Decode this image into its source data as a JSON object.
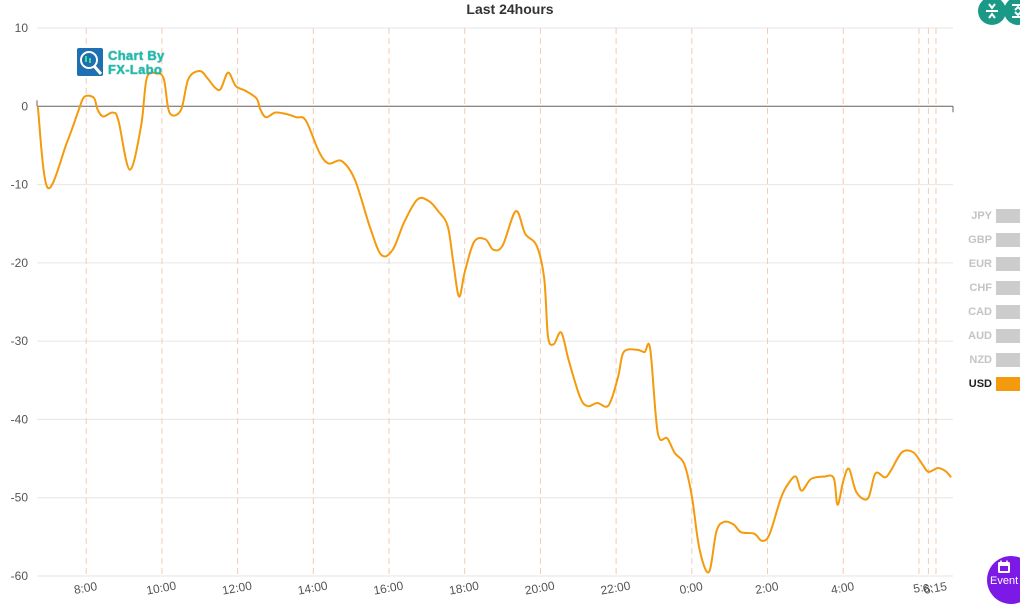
{
  "chart_data": {
    "type": "line",
    "title": "Last 24hours",
    "xlabel": "",
    "ylabel": "",
    "ylim": [
      -60,
      10
    ],
    "yticks": [
      10,
      0,
      -10,
      -20,
      -30,
      -40,
      -50,
      -60
    ],
    "xrange_hours": [
      6.7,
      30.9
    ],
    "xticks": [
      {
        "hour": 8,
        "label": "8:00"
      },
      {
        "hour": 10,
        "label": "10:00"
      },
      {
        "hour": 12,
        "label": "12:00"
      },
      {
        "hour": 14,
        "label": "14:00"
      },
      {
        "hour": 16,
        "label": "16:00"
      },
      {
        "hour": 18,
        "label": "18:00"
      },
      {
        "hour": 20,
        "label": "20:00"
      },
      {
        "hour": 22,
        "label": "22:00"
      },
      {
        "hour": 24,
        "label": "0:00"
      },
      {
        "hour": 26,
        "label": "2:00"
      },
      {
        "hour": 28,
        "label": "4:00"
      },
      {
        "hour": 30.0,
        "label": "5:"
      },
      {
        "hour": 30.25,
        "label": "6:"
      },
      {
        "hour": 30.45,
        "label": "6:15"
      }
    ],
    "grid": true,
    "legend_position": "right",
    "series": [
      {
        "name": "USD",
        "color": "#f59a0c",
        "points": [
          [
            6.72,
            0.0
          ],
          [
            6.98,
            -10.4
          ],
          [
            7.5,
            -4.5
          ],
          [
            7.8,
            -0.5
          ],
          [
            7.95,
            1.2
          ],
          [
            8.2,
            1.1
          ],
          [
            8.3,
            -0.4
          ],
          [
            8.45,
            -1.3
          ],
          [
            8.7,
            -0.8
          ],
          [
            8.85,
            -1.8
          ],
          [
            9.15,
            -8.1
          ],
          [
            9.45,
            -2.5
          ],
          [
            9.6,
            3.6
          ],
          [
            9.85,
            4.2
          ],
          [
            10.05,
            3.5
          ],
          [
            10.2,
            -0.8
          ],
          [
            10.5,
            -0.5
          ],
          [
            10.7,
            3.5
          ],
          [
            11.0,
            4.5
          ],
          [
            11.2,
            3.6
          ],
          [
            11.4,
            2.4
          ],
          [
            11.55,
            2.2
          ],
          [
            11.75,
            4.3
          ],
          [
            11.95,
            2.6
          ],
          [
            12.2,
            2.0
          ],
          [
            12.5,
            1.0
          ],
          [
            12.6,
            -0.4
          ],
          [
            12.75,
            -1.4
          ],
          [
            13.0,
            -0.8
          ],
          [
            13.3,
            -1.0
          ],
          [
            13.55,
            -1.4
          ],
          [
            13.8,
            -1.8
          ],
          [
            14.15,
            -5.8
          ],
          [
            14.4,
            -7.3
          ],
          [
            14.75,
            -7.0
          ],
          [
            15.1,
            -9.4
          ],
          [
            15.5,
            -15.5
          ],
          [
            15.8,
            -19.0
          ],
          [
            16.1,
            -18.3
          ],
          [
            16.4,
            -14.8
          ],
          [
            16.75,
            -11.9
          ],
          [
            17.05,
            -12.1
          ],
          [
            17.3,
            -13.4
          ],
          [
            17.55,
            -15.3
          ],
          [
            17.7,
            -20.0
          ],
          [
            17.85,
            -24.3
          ],
          [
            18.0,
            -21.2
          ],
          [
            18.25,
            -17.3
          ],
          [
            18.55,
            -17.0
          ],
          [
            18.75,
            -18.3
          ],
          [
            19.0,
            -17.8
          ],
          [
            19.35,
            -13.4
          ],
          [
            19.6,
            -16.3
          ],
          [
            19.9,
            -17.8
          ],
          [
            20.1,
            -22.0
          ],
          [
            20.2,
            -29.4
          ],
          [
            20.35,
            -30.4
          ],
          [
            20.55,
            -28.9
          ],
          [
            20.75,
            -32.5
          ],
          [
            21.05,
            -37.2
          ],
          [
            21.25,
            -38.3
          ],
          [
            21.5,
            -37.9
          ],
          [
            21.8,
            -38.2
          ],
          [
            22.05,
            -34.6
          ],
          [
            22.2,
            -31.4
          ],
          [
            22.55,
            -31.1
          ],
          [
            22.75,
            -31.4
          ],
          [
            22.9,
            -31.0
          ],
          [
            23.1,
            -41.7
          ],
          [
            23.35,
            -42.4
          ],
          [
            23.55,
            -44.3
          ],
          [
            23.8,
            -45.7
          ],
          [
            24.0,
            -49.8
          ],
          [
            24.2,
            -56.5
          ],
          [
            24.45,
            -59.5
          ],
          [
            24.65,
            -54.3
          ],
          [
            24.85,
            -53.1
          ],
          [
            25.1,
            -53.4
          ],
          [
            25.3,
            -54.4
          ],
          [
            25.65,
            -54.6
          ],
          [
            25.85,
            -55.5
          ],
          [
            26.05,
            -54.7
          ],
          [
            26.35,
            -50.1
          ],
          [
            26.55,
            -48.2
          ],
          [
            26.75,
            -47.3
          ],
          [
            26.9,
            -49.1
          ],
          [
            27.15,
            -47.6
          ],
          [
            27.5,
            -47.3
          ],
          [
            27.75,
            -47.5
          ],
          [
            27.85,
            -50.9
          ],
          [
            28.0,
            -47.9
          ],
          [
            28.15,
            -46.3
          ],
          [
            28.35,
            -49.3
          ],
          [
            28.65,
            -50.1
          ],
          [
            28.85,
            -46.9
          ],
          [
            29.1,
            -47.4
          ],
          [
            29.25,
            -46.6
          ],
          [
            29.55,
            -44.2
          ],
          [
            29.85,
            -44.2
          ],
          [
            30.1,
            -45.8
          ],
          [
            30.25,
            -46.7
          ],
          [
            30.5,
            -46.2
          ],
          [
            30.7,
            -46.6
          ],
          [
            30.85,
            -47.4
          ]
        ]
      }
    ],
    "legend": [
      {
        "label": "JPY",
        "active": false
      },
      {
        "label": "GBP",
        "active": false
      },
      {
        "label": "EUR",
        "active": false
      },
      {
        "label": "CHF",
        "active": false
      },
      {
        "label": "CAD",
        "active": false
      },
      {
        "label": "AUD",
        "active": false
      },
      {
        "label": "NZD",
        "active": false
      },
      {
        "label": "USD",
        "active": true
      }
    ]
  },
  "logo": {
    "line1": "Chart By",
    "line2": "FX-Labo"
  },
  "event_button": {
    "label": "Event",
    "icon": "calendar-icon"
  },
  "toolbar": {
    "icons": [
      "compress-icon",
      "expand-icon"
    ],
    "color": "#1a9a86"
  },
  "colors": {
    "line": "#f59a0c",
    "grid": "#e6e6e6",
    "vgrid": "#f3cbb3",
    "inactive_legend": "#cccccc"
  }
}
